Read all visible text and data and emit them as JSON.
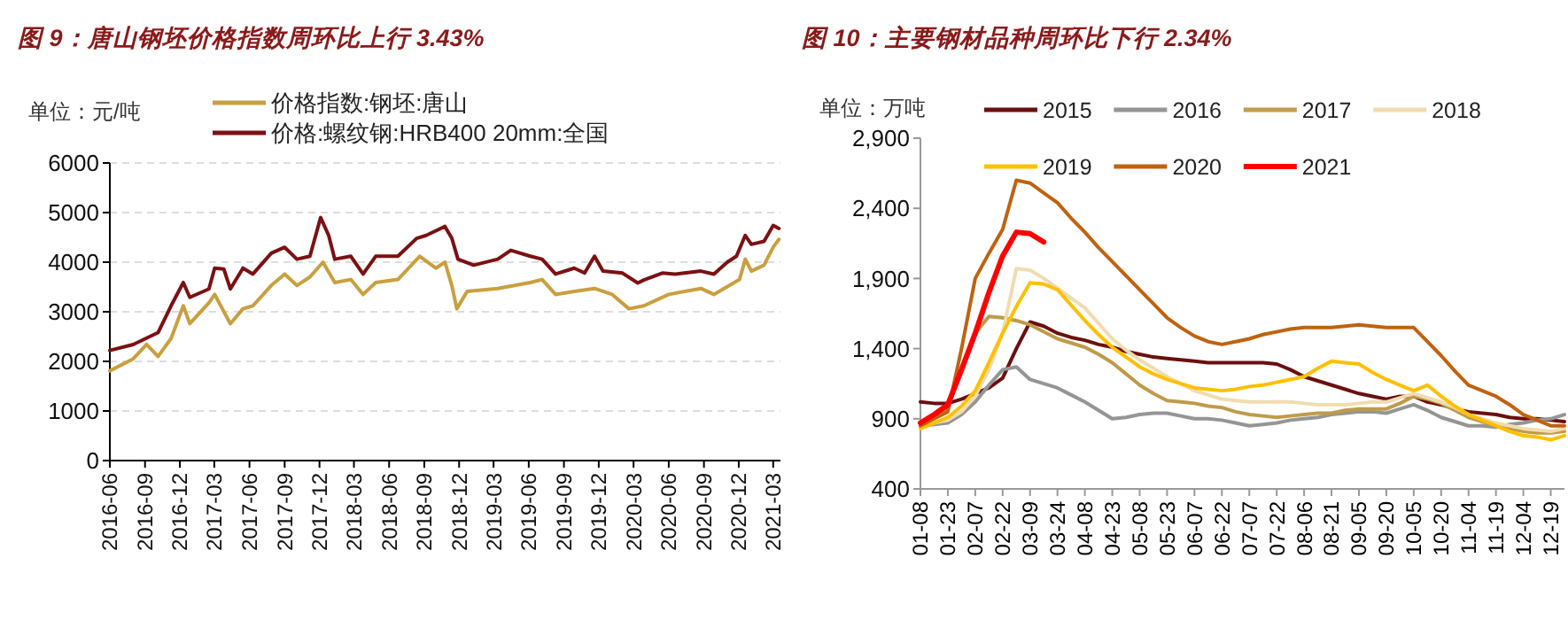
{
  "chart_data": [
    {
      "type": "line",
      "title": "图 9：唐山钢坯价格指数周环比上行 3.43%",
      "ylabel": "单位：元/吨",
      "legend": "top",
      "grid": "y",
      "xlim": [
        "2016-06-01",
        "2021-03-20"
      ],
      "ylim": [
        0,
        6000
      ],
      "yticks": [
        0,
        1000,
        2000,
        3000,
        4000,
        5000,
        6000
      ],
      "xticks": [
        "2016-06",
        "2016-09",
        "2016-12",
        "2017-03",
        "2017-06",
        "2017-09",
        "2017-12",
        "2018-03",
        "2018-06",
        "2018-09",
        "2018-12",
        "2019-03",
        "2019-06",
        "2019-09",
        "2019-12",
        "2020-03",
        "2020-06",
        "2020-09",
        "2020-12",
        "2021-03"
      ],
      "series": [
        {
          "name": "价格指数:钢坯:唐山",
          "color": "#c9a040",
          "x": [
            "2016-06-01",
            "2016-08-01",
            "2016-09-05",
            "2016-10-05",
            "2016-11-08",
            "2016-12-10",
            "2016-12-27",
            "2017-02-15",
            "2017-03-02",
            "2017-04-12",
            "2017-05-15",
            "2017-06-10",
            "2017-07-28",
            "2017-09-01",
            "2017-10-03",
            "2017-11-06",
            "2017-12-10",
            "2018-01-10",
            "2018-02-21",
            "2018-03-25",
            "2018-04-27",
            "2018-06-24",
            "2018-08-20",
            "2018-10-01",
            "2018-10-25",
            "2018-11-12",
            "2018-11-25",
            "2018-12-22",
            "2019-03-12",
            "2019-06-05",
            "2019-07-06",
            "2019-08-10",
            "2019-09-28",
            "2019-11-20",
            "2020-01-05",
            "2020-02-18",
            "2020-03-28",
            "2020-06-01",
            "2020-08-24",
            "2020-09-27",
            "2020-12-03",
            "2020-12-18",
            "2021-01-03",
            "2021-02-05",
            "2021-03-01",
            "2021-03-16"
          ],
          "values": [
            1810,
            2050,
            2340,
            2100,
            2460,
            3120,
            2760,
            3180,
            3350,
            2760,
            3060,
            3120,
            3530,
            3760,
            3530,
            3700,
            4000,
            3590,
            3650,
            3350,
            3590,
            3650,
            4120,
            3880,
            4000,
            3530,
            3060,
            3410,
            3470,
            3590,
            3650,
            3350,
            3410,
            3470,
            3350,
            3060,
            3120,
            3350,
            3470,
            3350,
            3650,
            4060,
            3820,
            3940,
            4300,
            4460
          ]
        },
        {
          "name": "价格:螺纹钢:HRB400 20mm:全国",
          "color": "#7b1113",
          "x": [
            "2016-06-01",
            "2016-08-01",
            "2016-10-05",
            "2016-11-08",
            "2016-12-10",
            "2016-12-27",
            "2017-02-15",
            "2017-03-02",
            "2017-03-26",
            "2017-04-12",
            "2017-05-15",
            "2017-06-10",
            "2017-07-28",
            "2017-09-01",
            "2017-10-03",
            "2017-11-06",
            "2017-12-04",
            "2017-12-25",
            "2018-01-10",
            "2018-02-21",
            "2018-03-25",
            "2018-04-27",
            "2018-06-24",
            "2018-08-12",
            "2018-09-06",
            "2018-10-25",
            "2018-11-12",
            "2018-11-28",
            "2019-01-08",
            "2019-03-12",
            "2019-04-15",
            "2019-06-05",
            "2019-07-06",
            "2019-08-10",
            "2019-09-28",
            "2019-10-25",
            "2019-11-20",
            "2019-12-12",
            "2020-02-01",
            "2020-03-12",
            "2020-03-28",
            "2020-05-15",
            "2020-06-18",
            "2020-08-24",
            "2020-09-27",
            "2020-11-01",
            "2020-11-25",
            "2020-12-18",
            "2021-01-03",
            "2021-02-05",
            "2021-03-01",
            "2021-03-16"
          ],
          "values": [
            2220,
            2340,
            2580,
            3120,
            3590,
            3290,
            3460,
            3880,
            3860,
            3460,
            3880,
            3760,
            4180,
            4300,
            4060,
            4120,
            4900,
            4540,
            4060,
            4120,
            3760,
            4120,
            4120,
            4480,
            4540,
            4720,
            4480,
            4060,
            3940,
            4060,
            4240,
            4120,
            4060,
            3760,
            3880,
            3780,
            4120,
            3820,
            3780,
            3580,
            3640,
            3780,
            3760,
            3820,
            3760,
            4000,
            4120,
            4540,
            4360,
            4420,
            4740,
            4680
          ]
        }
      ]
    },
    {
      "type": "line",
      "title": "图 10：主要钢材品种周环比下行 2.34%",
      "ylabel": "单位：万吨",
      "legend": "top",
      "categories": [
        "01-08",
        null,
        "01-23",
        null,
        "02-07",
        null,
        "02-22",
        null,
        "03-09",
        null,
        "03-24",
        null,
        "04-08",
        null,
        "04-23",
        null,
        "05-08",
        null,
        "05-23",
        null,
        "06-07",
        null,
        "06-22",
        null,
        "07-07",
        null,
        "07-22",
        null,
        "08-06",
        null,
        "08-21",
        null,
        "09-05",
        null,
        "09-20",
        null,
        "10-05",
        null,
        "10-20",
        null,
        "11-04",
        null,
        "11-19",
        null,
        "12-04",
        null,
        "12-19",
        null
      ],
      "ylim": [
        400,
        2900
      ],
      "yticks": [
        400,
        900,
        {
          "value": 1400,
          "label": "1,400"
        },
        {
          "value": 1900,
          "label": "1,900"
        },
        {
          "value": 2400,
          "label": "2,400"
        },
        {
          "value": 2900,
          "label": "2,900"
        }
      ],
      "series": [
        {
          "name": "2015",
          "color": "#6b0f0f",
          "values": [
            1020,
            1010,
            1010,
            1040,
            1080,
            1120,
            1190,
            1400,
            1590,
            1560,
            1510,
            1480,
            1460,
            1430,
            1410,
            1380,
            1360,
            1340,
            1330,
            1320,
            1310,
            1300,
            1300,
            1300,
            1300,
            1300,
            1290,
            1250,
            1200,
            1170,
            1140,
            1110,
            1080,
            1060,
            1040,
            1060,
            1060,
            1020,
            1000,
            970,
            950,
            940,
            930,
            910,
            900,
            900,
            890,
            880
          ]
        },
        {
          "name": "2016",
          "color": "#959595",
          "values": [
            850,
            860,
            870,
            930,
            1020,
            1140,
            1250,
            1270,
            1180,
            1150,
            1120,
            1070,
            1020,
            960,
            900,
            910,
            930,
            940,
            940,
            920,
            900,
            900,
            890,
            870,
            850,
            860,
            870,
            890,
            900,
            910,
            930,
            940,
            950,
            950,
            940,
            970,
            1000,
            960,
            910,
            880,
            850,
            850,
            840,
            860,
            870,
            890,
            900,
            930
          ]
        },
        {
          "name": "2017",
          "color": "#bf9b4a",
          "values": [
            860,
            900,
            980,
            1250,
            1510,
            1630,
            1620,
            1600,
            1570,
            1520,
            1470,
            1440,
            1410,
            1360,
            1300,
            1220,
            1140,
            1080,
            1030,
            1020,
            1010,
            990,
            980,
            950,
            930,
            920,
            910,
            920,
            930,
            940,
            940,
            960,
            970,
            970,
            970,
            1010,
            1060,
            1040,
            1010,
            960,
            910,
            880,
            850,
            830,
            810,
            800,
            800,
            810
          ]
        },
        {
          "name": "2018",
          "color": "#f0dcb0",
          "values": [
            860,
            870,
            890,
            950,
            1060,
            1250,
            1510,
            1970,
            1960,
            1900,
            1830,
            1760,
            1690,
            1580,
            1470,
            1390,
            1320,
            1260,
            1200,
            1150,
            1100,
            1070,
            1040,
            1030,
            1020,
            1020,
            1020,
            1020,
            1010,
            1000,
            1000,
            1000,
            1010,
            1020,
            1020,
            1050,
            1080,
            1050,
            1020,
            980,
            930,
            900,
            870,
            850,
            830,
            820,
            810,
            830
          ]
        },
        {
          "name": "2019",
          "color": "#ffc000",
          "values": [
            830,
            870,
            910,
            990,
            1100,
            1300,
            1510,
            1700,
            1870,
            1860,
            1820,
            1710,
            1600,
            1500,
            1410,
            1340,
            1270,
            1220,
            1180,
            1150,
            1120,
            1110,
            1100,
            1110,
            1130,
            1140,
            1160,
            1180,
            1200,
            1260,
            1310,
            1300,
            1290,
            1230,
            1180,
            1140,
            1100,
            1140,
            1060,
            990,
            930,
            890,
            850,
            810,
            780,
            770,
            750,
            780
          ]
        },
        {
          "name": "2020",
          "color": "#c0620f",
          "values": [
            850,
            900,
            950,
            1400,
            1900,
            2080,
            2250,
            2600,
            2580,
            2510,
            2440,
            2330,
            2230,
            2120,
            2020,
            1920,
            1820,
            1720,
            1620,
            1550,
            1490,
            1450,
            1430,
            1450,
            1470,
            1500,
            1520,
            1540,
            1550,
            1550,
            1550,
            1560,
            1570,
            1560,
            1550,
            1550,
            1550,
            1450,
            1350,
            1240,
            1140,
            1100,
            1060,
            1000,
            930,
            890,
            850,
            850
          ]
        },
        {
          "name": "2021",
          "color": "#ff0000",
          "values": [
            870,
            930,
            1000,
            1250,
            1510,
            1800,
            2060,
            2230,
            2220,
            2160,
            null,
            null,
            null,
            null,
            null,
            null,
            null,
            null,
            null,
            null,
            null,
            null,
            null,
            null,
            null,
            null,
            null,
            null,
            null,
            null,
            null,
            null,
            null,
            null,
            null,
            null,
            null,
            null,
            null,
            null,
            null,
            null,
            null,
            null,
            null,
            null,
            null,
            null
          ]
        }
      ]
    }
  ]
}
